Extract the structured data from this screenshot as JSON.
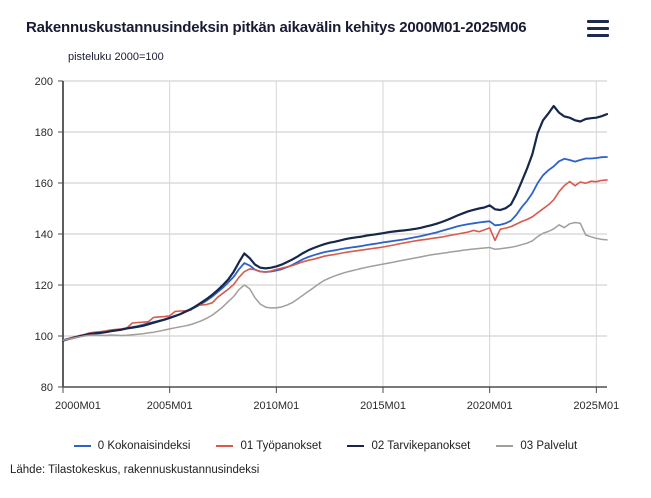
{
  "header": {
    "title": "Rakennuskustannusindeksin pitkän aikavälin kehitys 2000M01-2025M06",
    "menu_icon": "hamburger-icon"
  },
  "chart": {
    "unit_label": "pisteluku 2000=100"
  },
  "chart_data": {
    "type": "line",
    "title": "Rakennuskustannusindeksin pitkän aikavälin kehitys 2000M01-2025M06",
    "ylabel": "pisteluku 2000=100",
    "xlabel": "",
    "grid": true,
    "legend_position": "bottom",
    "xlim": [
      2000,
      2025.5
    ],
    "ylim": [
      80,
      200
    ],
    "y_ticks": [
      80,
      100,
      120,
      140,
      160,
      180,
      200
    ],
    "x_ticks": [
      2000,
      2005,
      2010,
      2015,
      2020,
      2025
    ],
    "x_tick_labels": [
      "2000M01",
      "2005M01",
      "2010M01",
      "2015M01",
      "2020M01",
      "2025M01"
    ],
    "x_start": 2000,
    "x_step": 0.25,
    "colors": {
      "total": "#2d63c8",
      "labour": "#d9594c",
      "materials": "#17264b",
      "services": "#a29e99",
      "grid": "#c9c9c9",
      "axis": "#4d4d4d",
      "text_dark": "#1a1b33"
    },
    "series": [
      {
        "name": "0 Kokonaisindeksi",
        "color": "#2d63c8",
        "width": 1.8,
        "values": [
          98.3,
          98.9,
          99.4,
          99.9,
          100.4,
          100.9,
          101.1,
          101.3,
          101.6,
          102.0,
          102.3,
          102.6,
          103.1,
          103.5,
          103.9,
          104.4,
          105.0,
          105.5,
          106.0,
          106.5,
          107.2,
          107.9,
          108.6,
          109.5,
          110.4,
          111.5,
          112.7,
          114.0,
          115.5,
          117.2,
          119.0,
          121.0,
          123.2,
          126.2,
          128.6,
          127.6,
          126.0,
          125.3,
          125.1,
          125.3,
          125.7,
          126.2,
          127.0,
          127.9,
          129.0,
          130.1,
          131.0,
          131.7,
          132.3,
          132.9,
          133.3,
          133.6,
          134.0,
          134.4,
          134.7,
          135.0,
          135.3,
          135.7,
          136.0,
          136.3,
          136.7,
          137.0,
          137.3,
          137.6,
          137.9,
          138.3,
          138.7,
          139.1,
          139.6,
          140.1,
          140.6,
          141.2,
          141.8,
          142.4,
          143.0,
          143.5,
          143.9,
          144.2,
          144.5,
          144.8,
          145.0,
          143.4,
          143.6,
          144.2,
          145.2,
          147.5,
          150.5,
          153.0,
          156.0,
          160.0,
          163.0,
          165.0,
          166.5,
          168.5,
          169.5,
          169.0,
          168.4,
          169.0,
          169.6,
          169.6,
          169.8,
          170.1,
          170.2
        ]
      },
      {
        "name": "01 Työpanokset",
        "color": "#d9594c",
        "width": 1.6,
        "values": [
          98.4,
          99.0,
          99.6,
          100.1,
          100.6,
          101.2,
          101.5,
          101.7,
          102.0,
          102.4,
          102.6,
          102.8,
          103.2,
          105.1,
          105.3,
          105.4,
          105.6,
          107.3,
          107.5,
          107.6,
          107.9,
          109.6,
          109.8,
          109.9,
          110.2,
          112.0,
          112.2,
          112.4,
          113.0,
          115.2,
          116.8,
          118.4,
          120.2,
          123.0,
          125.2,
          126.3,
          126.0,
          125.2,
          125.1,
          125.5,
          126.1,
          126.6,
          127.1,
          127.6,
          128.4,
          129.1,
          129.7,
          130.1,
          130.7,
          131.3,
          131.7,
          132.0,
          132.4,
          132.8,
          133.1,
          133.4,
          133.7,
          134.0,
          134.3,
          134.6,
          134.9,
          135.3,
          135.7,
          136.1,
          136.5,
          136.9,
          137.3,
          137.6,
          137.9,
          138.2,
          138.5,
          138.8,
          139.2,
          139.6,
          140.0,
          140.4,
          140.8,
          141.4,
          140.9,
          141.6,
          142.4,
          137.5,
          141.9,
          142.3,
          142.9,
          143.9,
          144.9,
          145.7,
          146.7,
          148.3,
          149.9,
          151.4,
          153.4,
          156.6,
          159.0,
          160.6,
          158.9,
          160.4,
          159.9,
          160.7,
          160.5,
          161.0,
          161.2
        ]
      },
      {
        "name": "02 Tarvikepanokset",
        "color": "#17264b",
        "width": 2.2,
        "values": [
          98.2,
          98.8,
          99.3,
          99.8,
          100.3,
          100.8,
          101.0,
          101.2,
          101.5,
          101.9,
          102.2,
          102.5,
          103.0,
          103.3,
          103.6,
          104.0,
          104.6,
          105.2,
          105.8,
          106.4,
          107.1,
          107.8,
          108.6,
          109.6,
          110.6,
          111.8,
          113.2,
          114.6,
          116.2,
          118.0,
          120.0,
          122.2,
          125.2,
          129.0,
          132.4,
          130.5,
          128.0,
          126.8,
          126.5,
          126.8,
          127.3,
          128.0,
          129.0,
          130.0,
          131.2,
          132.5,
          133.6,
          134.5,
          135.3,
          136.0,
          136.6,
          137.0,
          137.5,
          138.0,
          138.4,
          138.7,
          139.0,
          139.4,
          139.7,
          140.0,
          140.3,
          140.7,
          141.0,
          141.2,
          141.4,
          141.7,
          142.0,
          142.4,
          142.9,
          143.4,
          144.0,
          144.7,
          145.5,
          146.4,
          147.3,
          148.1,
          148.9,
          149.5,
          150.0,
          150.4,
          151.2,
          149.7,
          149.4,
          150.1,
          151.6,
          155.6,
          160.6,
          165.6,
          171.2,
          179.6,
          184.6,
          187.2,
          190.2,
          187.6,
          186.1,
          185.6,
          184.6,
          184.1,
          185.1,
          185.4,
          185.6,
          186.2,
          187.0
        ]
      },
      {
        "name": "03 Palvelut",
        "color": "#a29e99",
        "width": 1.5,
        "values": [
          98.3,
          98.8,
          99.2,
          99.6,
          100.0,
          100.3,
          100.4,
          100.3,
          100.2,
          100.4,
          100.3,
          100.2,
          100.3,
          100.5,
          100.7,
          100.9,
          101.2,
          101.5,
          101.9,
          102.3,
          102.8,
          103.2,
          103.6,
          104.0,
          104.5,
          105.2,
          106.0,
          107.0,
          108.2,
          109.8,
          111.5,
          113.5,
          115.5,
          118.2,
          120.0,
          118.5,
          115.0,
          112.5,
          111.3,
          111.0,
          111.0,
          111.4,
          112.1,
          113.1,
          114.5,
          116.0,
          117.5,
          119.0,
          120.5,
          121.8,
          122.8,
          123.6,
          124.3,
          125.0,
          125.5,
          126.0,
          126.5,
          127.0,
          127.4,
          127.8,
          128.2,
          128.6,
          129.0,
          129.4,
          129.8,
          130.2,
          130.6,
          131.0,
          131.4,
          131.8,
          132.1,
          132.4,
          132.7,
          133.0,
          133.3,
          133.6,
          133.9,
          134.1,
          134.3,
          134.5,
          134.7,
          134.0,
          134.2,
          134.5,
          134.8,
          135.2,
          135.8,
          136.4,
          137.3,
          139.0,
          140.3,
          141.0,
          142.0,
          143.6,
          142.5,
          144.0,
          144.5,
          144.2,
          139.6,
          138.9,
          138.3,
          137.9,
          137.7
        ]
      }
    ]
  },
  "footer": {
    "source": "Lähde: Tilastokeskus, rakennuskustannusindeksi"
  }
}
